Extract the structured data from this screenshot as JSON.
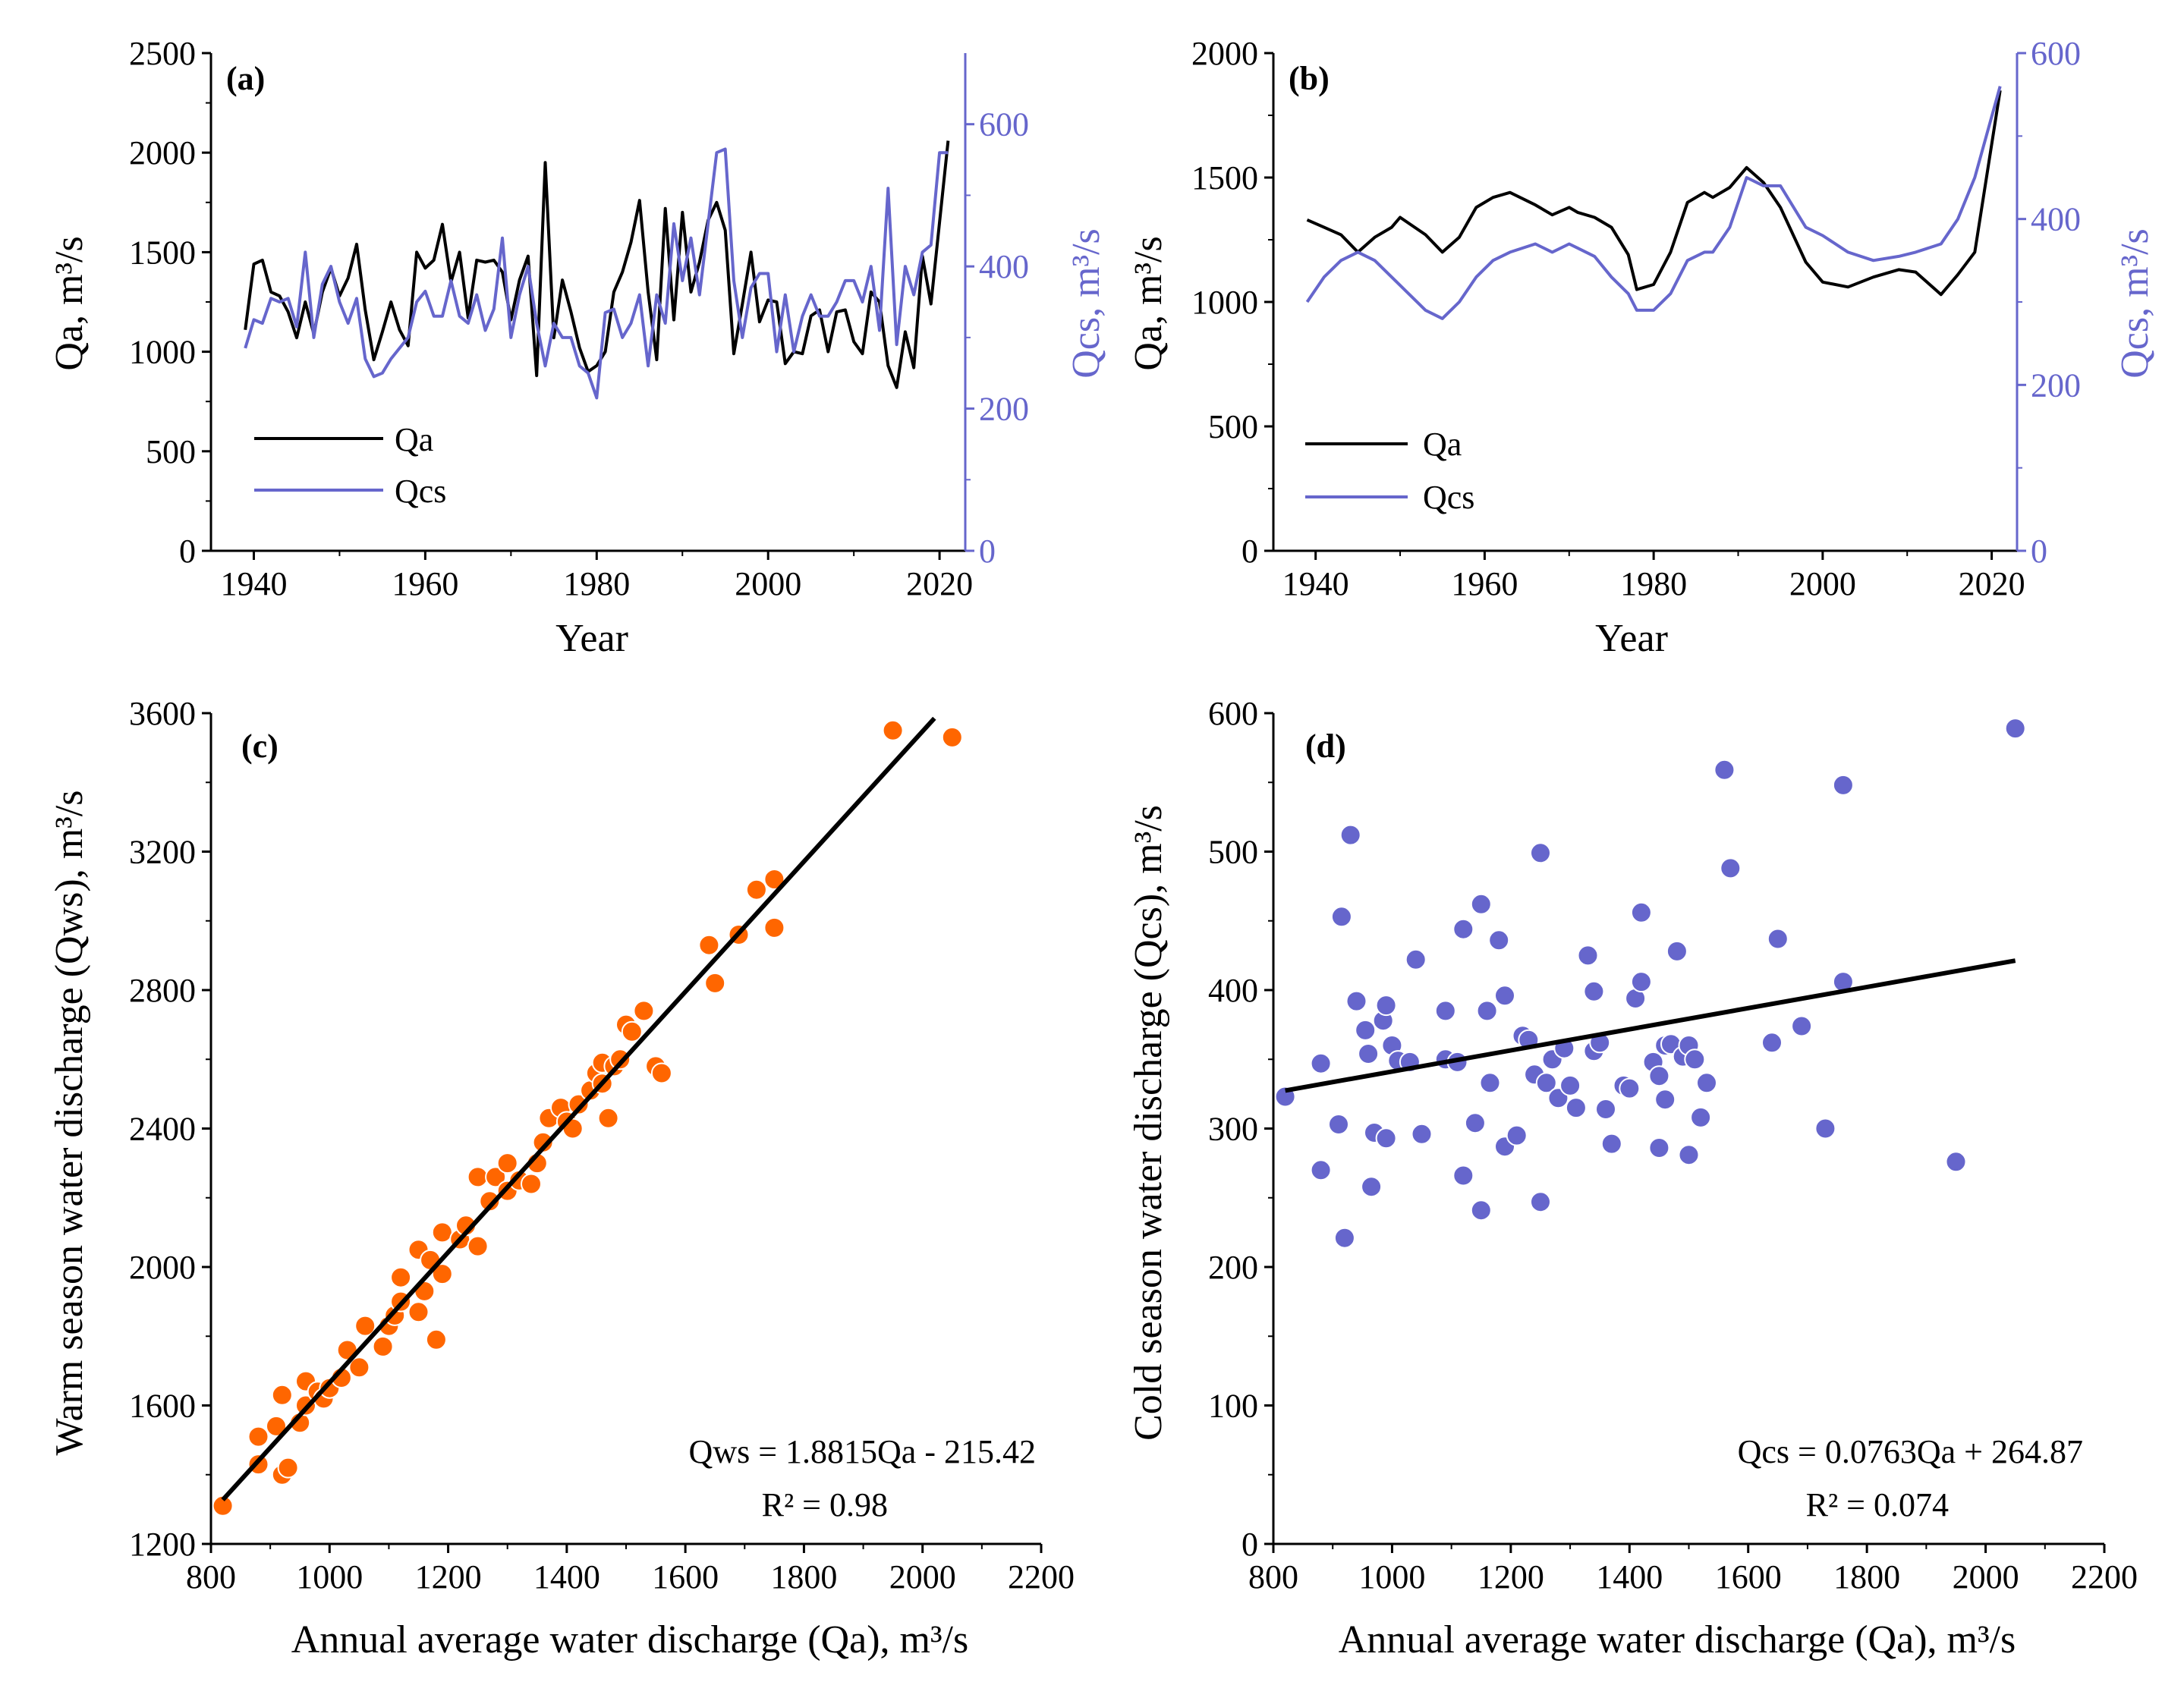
{
  "colors": {
    "qa": "#000000",
    "qcs": "#6666cc",
    "qws_points": "#ff6600",
    "qcs_points": "#6666cc"
  },
  "chart_data": [
    {
      "panel": "(a)",
      "type": "line",
      "xlabel": "Year",
      "ylabel": "Qa, m³/s",
      "y2label": "Qcs, m³/s",
      "xlim": [
        1935,
        2023
      ],
      "ylim": [
        0,
        2500
      ],
      "y2lim": [
        0,
        700
      ],
      "xticks": [
        "1940",
        "1960",
        "1980",
        "2000",
        "2020"
      ],
      "yticks": [
        "0",
        "500",
        "1000",
        "1500",
        "2000",
        "2500"
      ],
      "y2ticks": [
        "0",
        "200",
        "400",
        "600"
      ],
      "legend": [
        "Qa",
        "Qcs"
      ],
      "x": [
        1939,
        1940,
        1941,
        1942,
        1943,
        1944,
        1945,
        1946,
        1947,
        1948,
        1949,
        1950,
        1951,
        1952,
        1953,
        1954,
        1955,
        1956,
        1957,
        1958,
        1959,
        1960,
        1961,
        1962,
        1963,
        1964,
        1965,
        1966,
        1967,
        1968,
        1969,
        1970,
        1971,
        1972,
        1973,
        1974,
        1975,
        1976,
        1977,
        1978,
        1979,
        1980,
        1981,
        1982,
        1983,
        1984,
        1985,
        1986,
        1987,
        1988,
        1989,
        1990,
        1991,
        1992,
        1993,
        1994,
        1995,
        1996,
        1997,
        1998,
        1999,
        2000,
        2001,
        2002,
        2003,
        2004,
        2005,
        2006,
        2007,
        2008,
        2009,
        2010,
        2011,
        2012,
        2013,
        2014,
        2015,
        2016,
        2017,
        2018,
        2019,
        2020,
        2021
      ],
      "series": [
        {
          "name": "Qa",
          "axis": "left",
          "values": [
            1110,
            1440,
            1460,
            1300,
            1280,
            1200,
            1070,
            1250,
            1090,
            1300,
            1420,
            1280,
            1370,
            1540,
            1210,
            960,
            1100,
            1250,
            1110,
            1030,
            1500,
            1420,
            1460,
            1640,
            1350,
            1500,
            1170,
            1460,
            1450,
            1460,
            1400,
            1160,
            1360,
            1480,
            880,
            1950,
            1070,
            1360,
            1200,
            1020,
            900,
            930,
            1000,
            1300,
            1400,
            1550,
            1760,
            1300,
            960,
            1720,
            1160,
            1700,
            1300,
            1450,
            1660,
            1750,
            1610,
            990,
            1240,
            1500,
            1150,
            1260,
            1250,
            940,
            1000,
            990,
            1180,
            1210,
            1000,
            1200,
            1210,
            1050,
            990,
            1300,
            1250,
            930,
            820,
            1100,
            920,
            1480,
            1240,
            1650,
            2060
          ]
        },
        {
          "name": "Qcs",
          "axis": "right",
          "values": [
            285,
            325,
            320,
            355,
            350,
            355,
            315,
            420,
            300,
            375,
            400,
            350,
            320,
            355,
            270,
            245,
            250,
            270,
            285,
            300,
            350,
            365,
            330,
            330,
            380,
            330,
            320,
            360,
            310,
            340,
            440,
            300,
            360,
            400,
            320,
            260,
            320,
            300,
            300,
            260,
            250,
            215,
            335,
            340,
            300,
            320,
            360,
            260,
            360,
            320,
            460,
            380,
            440,
            360,
            460,
            560,
            565,
            380,
            300,
            370,
            390,
            390,
            280,
            360,
            280,
            330,
            360,
            330,
            330,
            350,
            380,
            380,
            350,
            400,
            310,
            510,
            290,
            400,
            360,
            420,
            430,
            560,
            560
          ]
        }
      ]
    },
    {
      "panel": "(b)",
      "type": "line",
      "xlabel": "Year",
      "ylabel": "Qa, m³/s",
      "y2label": "Qcs, m³/s",
      "xlim": [
        1935,
        2023
      ],
      "ylim": [
        0,
        2000
      ],
      "y2lim": [
        0,
        600
      ],
      "xticks": [
        "1940",
        "1960",
        "1980",
        "2000",
        "2020"
      ],
      "yticks": [
        "0",
        "500",
        "1000",
        "1500",
        "2000"
      ],
      "y2ticks": [
        "0",
        "200",
        "400",
        "600"
      ],
      "legend": [
        "Qa",
        "Qcs"
      ],
      "x": [
        1939,
        1941,
        1943,
        1945,
        1947,
        1949,
        1950,
        1953,
        1955,
        1957,
        1959,
        1961,
        1963,
        1966,
        1968,
        1970,
        1971,
        1973,
        1975,
        1977,
        1978,
        1980,
        1982,
        1984,
        1986,
        1987,
        1989,
        1991,
        1993,
        1995,
        1998,
        2000,
        2003,
        2006,
        2009,
        2011,
        2014,
        2016,
        2018,
        2021
      ],
      "series": [
        {
          "name": "Qa",
          "axis": "left",
          "values": [
            1330,
            1300,
            1270,
            1200,
            1260,
            1300,
            1340,
            1270,
            1200,
            1260,
            1380,
            1420,
            1440,
            1390,
            1350,
            1380,
            1360,
            1340,
            1300,
            1190,
            1050,
            1070,
            1200,
            1400,
            1440,
            1420,
            1460,
            1540,
            1480,
            1380,
            1160,
            1080,
            1060,
            1100,
            1130,
            1120,
            1030,
            1110,
            1200,
            1850
          ]
        },
        {
          "name": "Qcs",
          "axis": "right",
          "values": [
            300,
            330,
            350,
            360,
            350,
            330,
            320,
            290,
            280,
            300,
            330,
            350,
            360,
            370,
            360,
            370,
            365,
            355,
            330,
            310,
            290,
            290,
            310,
            350,
            360,
            360,
            390,
            450,
            440,
            440,
            390,
            380,
            360,
            350,
            355,
            360,
            370,
            400,
            450,
            560
          ]
        }
      ]
    },
    {
      "panel": "(c)",
      "type": "scatter",
      "xlabel": "Annual average water discharge (Qa), m³/s",
      "ylabel": "Warm season water discharge (Qws), m³/s",
      "xlim": [
        800,
        2200
      ],
      "ylim": [
        1200,
        3600
      ],
      "xticks": [
        "800",
        "1000",
        "1200",
        "1400",
        "1600",
        "1800",
        "2000",
        "2200"
      ],
      "yticks": [
        "1200",
        "1600",
        "2000",
        "2400",
        "2800",
        "3200",
        "3600"
      ],
      "equation": "Qws = 1.8815Qa - 215.42",
      "r2": "R² = 0.98",
      "fit": {
        "slope": 1.8815,
        "intercept": -215.42,
        "x_range": [
          820,
          2020
        ]
      },
      "points": [
        [
          820,
          1310
        ],
        [
          880,
          1510
        ],
        [
          880,
          1430
        ],
        [
          910,
          1540
        ],
        [
          920,
          1400
        ],
        [
          930,
          1420
        ],
        [
          920,
          1630
        ],
        [
          950,
          1550
        ],
        [
          960,
          1600
        ],
        [
          960,
          1670
        ],
        [
          980,
          1640
        ],
        [
          990,
          1620
        ],
        [
          1000,
          1650
        ],
        [
          1020,
          1680
        ],
        [
          1030,
          1760
        ],
        [
          1050,
          1710
        ],
        [
          1060,
          1830
        ],
        [
          1090,
          1770
        ],
        [
          1100,
          1830
        ],
        [
          1110,
          1860
        ],
        [
          1120,
          1900
        ],
        [
          1120,
          1970
        ],
        [
          1150,
          1870
        ],
        [
          1150,
          2050
        ],
        [
          1160,
          1930
        ],
        [
          1170,
          2020
        ],
        [
          1180,
          1790
        ],
        [
          1190,
          2100
        ],
        [
          1190,
          1980
        ],
        [
          1220,
          2080
        ],
        [
          1230,
          2120
        ],
        [
          1250,
          2060
        ],
        [
          1250,
          2260
        ],
        [
          1270,
          2190
        ],
        [
          1280,
          2260
        ],
        [
          1300,
          2220
        ],
        [
          1300,
          2300
        ],
        [
          1320,
          2250
        ],
        [
          1340,
          2240
        ],
        [
          1350,
          2300
        ],
        [
          1360,
          2360
        ],
        [
          1370,
          2430
        ],
        [
          1390,
          2460
        ],
        [
          1400,
          2420
        ],
        [
          1410,
          2400
        ],
        [
          1420,
          2470
        ],
        [
          1440,
          2510
        ],
        [
          1450,
          2560
        ],
        [
          1460,
          2530
        ],
        [
          1460,
          2590
        ],
        [
          1470,
          2430
        ],
        [
          1480,
          2580
        ],
        [
          1490,
          2600
        ],
        [
          1500,
          2700
        ],
        [
          1510,
          2680
        ],
        [
          1530,
          2740
        ],
        [
          1550,
          2580
        ],
        [
          1560,
          2560
        ],
        [
          1640,
          2930
        ],
        [
          1650,
          2820
        ],
        [
          1690,
          2960
        ],
        [
          1720,
          3090
        ],
        [
          1750,
          3120
        ],
        [
          1750,
          2980
        ],
        [
          1950,
          3550
        ],
        [
          2050,
          3530
        ]
      ]
    },
    {
      "panel": "(d)",
      "type": "scatter",
      "xlabel": "Annual average water discharge (Qa), m³/s",
      "ylabel": "Cold season water discharge (Qcs), m³/s",
      "xlim": [
        800,
        2200
      ],
      "ylim": [
        0,
        600
      ],
      "xticks": [
        "800",
        "1000",
        "1200",
        "1400",
        "1600",
        "1800",
        "2000",
        "2200"
      ],
      "yticks": [
        "0",
        "100",
        "200",
        "300",
        "400",
        "500",
        "600"
      ],
      "equation": "Qcs = 0.0763Qa + 264.87",
      "r2": "R² = 0.074",
      "fit": {
        "slope": 0.0763,
        "intercept": 264.87,
        "x_range": [
          820,
          2050
        ]
      },
      "points": [
        [
          820,
          323
        ],
        [
          880,
          347
        ],
        [
          880,
          270
        ],
        [
          910,
          303
        ],
        [
          915,
          453
        ],
        [
          920,
          221
        ],
        [
          930,
          512
        ],
        [
          940,
          392
        ],
        [
          955,
          371
        ],
        [
          960,
          354
        ],
        [
          965,
          258
        ],
        [
          970,
          297
        ],
        [
          985,
          378
        ],
        [
          990,
          293
        ],
        [
          990,
          389
        ],
        [
          1000,
          360
        ],
        [
          1010,
          349
        ],
        [
          1030,
          348
        ],
        [
          1040,
          422
        ],
        [
          1050,
          296
        ],
        [
          1090,
          385
        ],
        [
          1090,
          350
        ],
        [
          1110,
          348
        ],
        [
          1120,
          266
        ],
        [
          1120,
          444
        ],
        [
          1140,
          304
        ],
        [
          1150,
          462
        ],
        [
          1150,
          241
        ],
        [
          1160,
          385
        ],
        [
          1165,
          333
        ],
        [
          1180,
          436
        ],
        [
          1190,
          287
        ],
        [
          1190,
          396
        ],
        [
          1210,
          295
        ],
        [
          1220,
          367
        ],
        [
          1230,
          364
        ],
        [
          1240,
          339
        ],
        [
          1250,
          499
        ],
        [
          1250,
          247
        ],
        [
          1260,
          333
        ],
        [
          1270,
          350
        ],
        [
          1280,
          322
        ],
        [
          1290,
          358
        ],
        [
          1300,
          331
        ],
        [
          1310,
          315
        ],
        [
          1330,
          425
        ],
        [
          1340,
          399
        ],
        [
          1340,
          356
        ],
        [
          1350,
          362
        ],
        [
          1360,
          314
        ],
        [
          1370,
          289
        ],
        [
          1390,
          331
        ],
        [
          1400,
          329
        ],
        [
          1410,
          394
        ],
        [
          1420,
          406
        ],
        [
          1420,
          456
        ],
        [
          1440,
          348
        ],
        [
          1450,
          286
        ],
        [
          1450,
          338
        ],
        [
          1460,
          360
        ],
        [
          1460,
          321
        ],
        [
          1470,
          361
        ],
        [
          1480,
          428
        ],
        [
          1490,
          352
        ],
        [
          1500,
          360
        ],
        [
          1500,
          281
        ],
        [
          1510,
          350
        ],
        [
          1520,
          308
        ],
        [
          1530,
          333
        ],
        [
          1560,
          559
        ],
        [
          1570,
          488
        ],
        [
          1640,
          362
        ],
        [
          1650,
          437
        ],
        [
          1690,
          374
        ],
        [
          1730,
          300
        ],
        [
          1760,
          548
        ],
        [
          1760,
          406
        ],
        [
          1950,
          276
        ],
        [
          2050,
          589
        ]
      ]
    }
  ]
}
